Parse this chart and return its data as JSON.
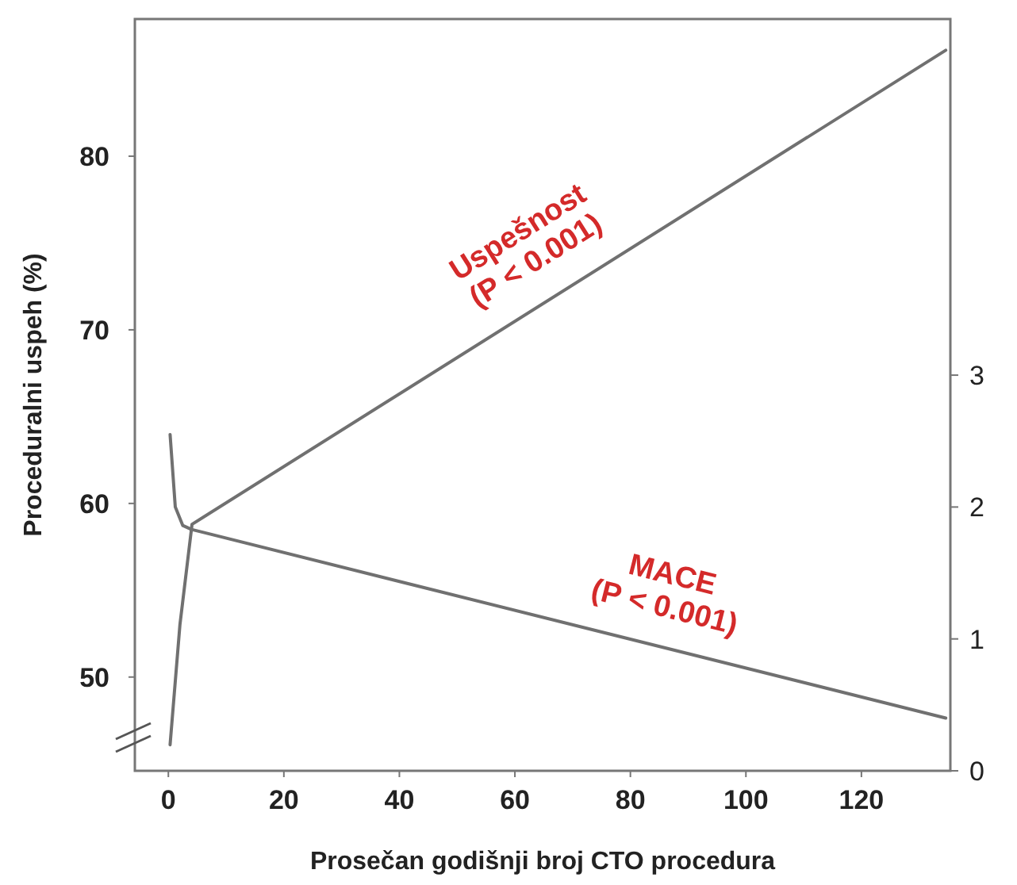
{
  "chart_data": {
    "type": "line",
    "xlabel": "Prosečan godišnji broj CTO procedura",
    "ylabel": "Proceduralni uspeh (%)",
    "xlim": [
      -5.8,
      135.4
    ],
    "xticks": [
      0,
      20,
      40,
      60,
      80,
      100,
      120
    ],
    "ylim": [
      44.6,
      87.9
    ],
    "yticks": [
      50,
      60,
      70,
      80
    ],
    "y2lim": [
      0,
      5.7
    ],
    "y2ticks": [
      0,
      1,
      2,
      3
    ],
    "series": [
      {
        "color": "#707070",
        "x": [
          0.3,
          2,
          4.1,
          134.6
        ],
        "values": [
          46.1,
          53,
          58.8,
          86.1
        ]
      },
      {
        "color": "#707070",
        "axis": "y2",
        "x": [
          0.3,
          1.2,
          2.5,
          4,
          134.6
        ],
        "values": [
          2.55,
          2.0,
          1.86,
          1.83,
          0.4
        ]
      }
    ],
    "annotations": [
      "Uspešnost\n(P < 0.001)",
      "MACE\n(P < 0.001)"
    ],
    "grid": false,
    "marker": "none",
    "line_style": "solid"
  }
}
